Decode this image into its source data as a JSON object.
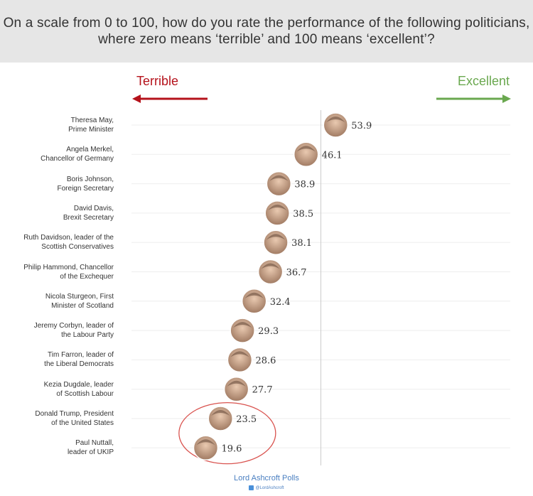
{
  "header": {
    "line1": "On a scale from 0 to 100, how do you rate the performance of the following politicians,",
    "line2": "where zero means ‘terrible’ and 100 means ‘excellent’?"
  },
  "scale": {
    "terrible_label": "Terrible",
    "excellent_label": "Excellent",
    "terrible_color": "#b5121b",
    "excellent_color": "#6aa84f"
  },
  "footer": {
    "source": "Lord Ashcroft Polls",
    "handle": "@LordAshcroft"
  },
  "chart_data": {
    "type": "scatter",
    "title": "On a scale from 0 to 100, how do you rate the performance of the following politicians, where zero means ‘terrible’ and 100 means ‘excellent’?",
    "xlim": [
      0,
      100
    ],
    "midline": 50,
    "grid": true,
    "highlight": {
      "shape": "ellipse",
      "color": "#d9534f",
      "categories": [
        "Donald Trump, President of the United States",
        "Paul Nuttall, leader of UKIP"
      ]
    },
    "points": [
      {
        "line1": "Theresa May,",
        "line2": "Prime Minister",
        "value": 53.9
      },
      {
        "line1": "Angela Merkel,",
        "line2": "Chancellor of Germany",
        "value": 46.1
      },
      {
        "line1": "Boris Johnson,",
        "line2": "Foreign Secretary",
        "value": 38.9
      },
      {
        "line1": "David Davis,",
        "line2": "Brexit Secretary",
        "value": 38.5
      },
      {
        "line1": "Ruth Davidson, leader of the",
        "line2": "Scottish Conservatives",
        "value": 38.1
      },
      {
        "line1": "Philip Hammond, Chancellor",
        "line2": "of the Exchequer",
        "value": 36.7
      },
      {
        "line1": "Nicola Sturgeon, First",
        "line2": "Minister of Scotland",
        "value": 32.4
      },
      {
        "line1": "Jeremy Corbyn, leader of",
        "line2": "the Labour Party",
        "value": 29.3
      },
      {
        "line1": "Tim Farron, leader of",
        "line2": "the Liberal Democrats",
        "value": 28.6
      },
      {
        "line1": "Kezia Dugdale, leader",
        "line2": "of Scottish Labour",
        "value": 27.7
      },
      {
        "line1": "Donald Trump, President",
        "line2": "of the United States",
        "value": 23.5
      },
      {
        "line1": "Paul Nuttall,",
        "line2": "leader of UKIP",
        "value": 19.6
      }
    ]
  }
}
